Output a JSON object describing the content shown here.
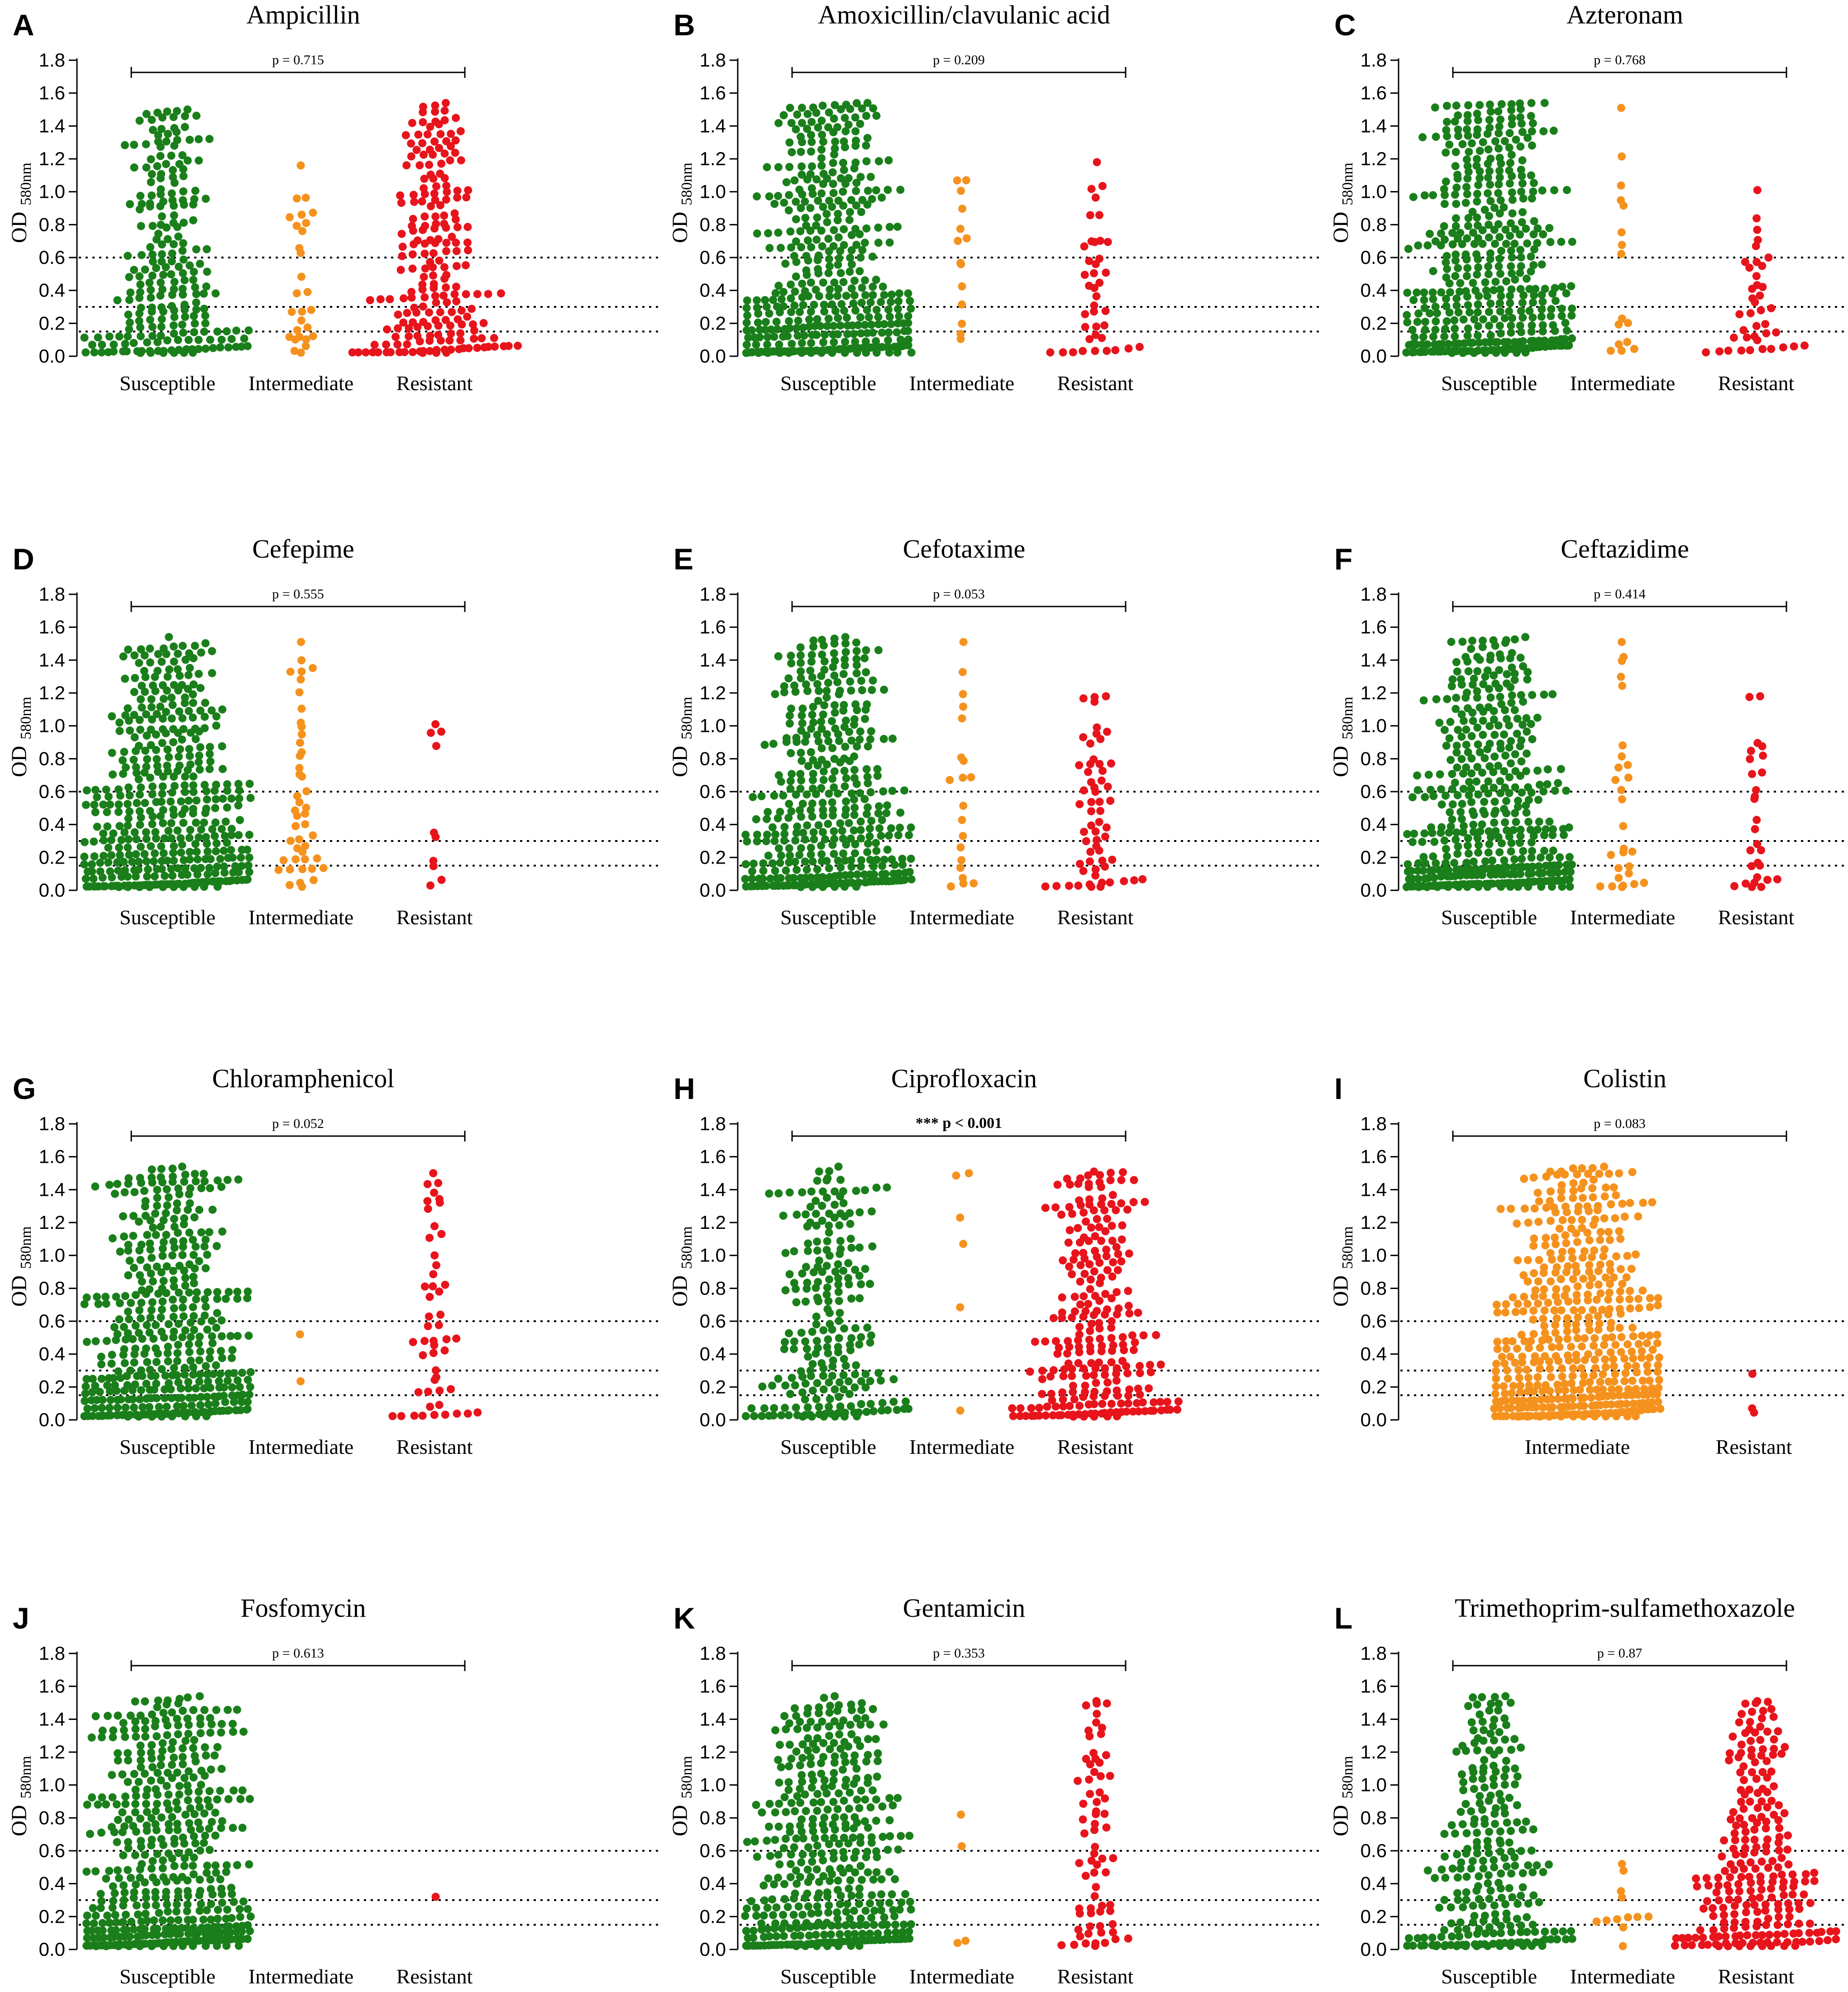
{
  "chart_data": [
    {
      "panel": "A",
      "type": "scatter",
      "title": "Ampicillin",
      "categories": [
        "Susceptible",
        "Intermediate",
        "Resistant"
      ],
      "series": [
        {
          "name": "Susceptible",
          "color": "#1a7f1a",
          "count": 230,
          "max": 1.5
        },
        {
          "name": "Intermediate",
          "color": "#f5921e",
          "count": 28,
          "max": 1.16
        },
        {
          "name": "Resistant",
          "color": "#e8141c",
          "count": 210,
          "max": 1.54
        }
      ],
      "p_text": "p = 0.715",
      "p_bold": false,
      "ylabel": "OD",
      "ylabel_sub": "580nm",
      "ylim": [
        0,
        1.8
      ],
      "yticks": [
        "0.0",
        "0.2",
        "0.4",
        "0.6",
        "0.8",
        "1.0",
        "1.2",
        "1.4",
        "1.6",
        "1.8"
      ],
      "thresholds": [
        0.15,
        0.3,
        0.6
      ]
    },
    {
      "panel": "B",
      "type": "scatter",
      "title": "Amoxicillin/clavulanic acid",
      "categories": [
        "Susceptible",
        "Intermediate",
        "Resistant"
      ],
      "series": [
        {
          "name": "Susceptible",
          "color": "#1a7f1a",
          "count": 420,
          "max": 1.54
        },
        {
          "name": "Intermediate",
          "color": "#f5921e",
          "count": 14,
          "max": 1.07
        },
        {
          "name": "Resistant",
          "color": "#e8141c",
          "count": 40,
          "max": 1.18
        }
      ],
      "p_text": "p = 0.209",
      "p_bold": false,
      "ylabel": "OD",
      "ylabel_sub": "580nm",
      "ylim": [
        0,
        1.8
      ],
      "yticks": [
        "0.0",
        "0.2",
        "0.4",
        "0.6",
        "0.8",
        "1.0",
        "1.2",
        "1.4",
        "1.6",
        "1.8"
      ],
      "thresholds": [
        0.15,
        0.3,
        0.6
      ]
    },
    {
      "panel": "C",
      "type": "scatter",
      "title": "Azteronam",
      "categories": [
        "Susceptible",
        "Intermediate",
        "Resistant"
      ],
      "series": [
        {
          "name": "Susceptible",
          "color": "#1a7f1a",
          "count": 430,
          "max": 1.54
        },
        {
          "name": "Intermediate",
          "color": "#f5921e",
          "count": 16,
          "max": 1.51
        },
        {
          "name": "Resistant",
          "color": "#e8141c",
          "count": 40,
          "max": 1.01
        }
      ],
      "p_text": "p = 0.768",
      "p_bold": false,
      "ylabel": "OD",
      "ylabel_sub": "580nm",
      "ylim": [
        0,
        1.8
      ],
      "yticks": [
        "0.0",
        "0.2",
        "0.4",
        "0.6",
        "0.8",
        "1.0",
        "1.2",
        "1.4",
        "1.6",
        "1.8"
      ],
      "thresholds": [
        0.15,
        0.3,
        0.6
      ]
    },
    {
      "panel": "D",
      "type": "scatter",
      "title": "Cefepime",
      "categories": [
        "Susceptible",
        "Intermediate",
        "Resistant"
      ],
      "series": [
        {
          "name": "Susceptible",
          "color": "#1a7f1a",
          "count": 430,
          "max": 1.54
        },
        {
          "name": "Intermediate",
          "color": "#f5921e",
          "count": 45,
          "max": 1.51
        },
        {
          "name": "Resistant",
          "color": "#e8141c",
          "count": 10,
          "max": 1.01
        }
      ],
      "p_text": "p = 0.555",
      "p_bold": false,
      "ylabel": "OD",
      "ylabel_sub": "580nm",
      "ylim": [
        0,
        1.8
      ],
      "yticks": [
        "0.0",
        "0.2",
        "0.4",
        "0.6",
        "0.8",
        "1.0",
        "1.2",
        "1.4",
        "1.6",
        "1.8"
      ],
      "thresholds": [
        0.15,
        0.3,
        0.6
      ]
    },
    {
      "panel": "E",
      "type": "scatter",
      "title": "Cefotaxime",
      "categories": [
        "Susceptible",
        "Intermediate",
        "Resistant"
      ],
      "series": [
        {
          "name": "Susceptible",
          "color": "#1a7f1a",
          "count": 400,
          "max": 1.54
        },
        {
          "name": "Intermediate",
          "color": "#f5921e",
          "count": 20,
          "max": 1.51
        },
        {
          "name": "Resistant",
          "color": "#e8141c",
          "count": 60,
          "max": 1.18
        }
      ],
      "p_text": "p = 0.053",
      "p_bold": false,
      "ylabel": "OD",
      "ylabel_sub": "580nm",
      "ylim": [
        0,
        1.8
      ],
      "yticks": [
        "0.0",
        "0.2",
        "0.4",
        "0.6",
        "0.8",
        "1.0",
        "1.2",
        "1.4",
        "1.6",
        "1.8"
      ],
      "thresholds": [
        0.15,
        0.3,
        0.6
      ]
    },
    {
      "panel": "F",
      "type": "scatter",
      "title": "Ceftazidime",
      "categories": [
        "Susceptible",
        "Intermediate",
        "Resistant"
      ],
      "series": [
        {
          "name": "Susceptible",
          "color": "#1a7f1a",
          "count": 430,
          "max": 1.54
        },
        {
          "name": "Intermediate",
          "color": "#f5921e",
          "count": 28,
          "max": 1.51
        },
        {
          "name": "Resistant",
          "color": "#e8141c",
          "count": 28,
          "max": 1.18
        }
      ],
      "p_text": "p = 0.414",
      "p_bold": false,
      "ylabel": "OD",
      "ylabel_sub": "580nm",
      "ylim": [
        0,
        1.8
      ],
      "yticks": [
        "0.0",
        "0.2",
        "0.4",
        "0.6",
        "0.8",
        "1.0",
        "1.2",
        "1.4",
        "1.6",
        "1.8"
      ],
      "thresholds": [
        0.15,
        0.3,
        0.6
      ]
    },
    {
      "panel": "G",
      "type": "scatter",
      "title": "Chloramphenicol",
      "categories": [
        "Susceptible",
        "Intermediate",
        "Resistant"
      ],
      "series": [
        {
          "name": "Susceptible",
          "color": "#1a7f1a",
          "count": 430,
          "max": 1.54
        },
        {
          "name": "Intermediate",
          "color": "#f5921e",
          "count": 2,
          "max": 0.52
        },
        {
          "name": "Resistant",
          "color": "#e8141c",
          "count": 50,
          "max": 1.5
        }
      ],
      "p_text": "p = 0.052",
      "p_bold": false,
      "ylabel": "OD",
      "ylabel_sub": "580nm",
      "ylim": [
        0,
        1.8
      ],
      "yticks": [
        "0.0",
        "0.2",
        "0.4",
        "0.6",
        "0.8",
        "1.0",
        "1.2",
        "1.4",
        "1.6",
        "1.8"
      ],
      "thresholds": [
        0.15,
        0.3,
        0.6
      ]
    },
    {
      "panel": "H",
      "type": "scatter",
      "title": "Ciprofloxacin",
      "categories": [
        "Susceptible",
        "Intermediate",
        "Resistant"
      ],
      "series": [
        {
          "name": "Susceptible",
          "color": "#1a7f1a",
          "count": 230,
          "max": 1.54
        },
        {
          "name": "Intermediate",
          "color": "#f5921e",
          "count": 6,
          "max": 1.5
        },
        {
          "name": "Resistant",
          "color": "#e8141c",
          "count": 260,
          "max": 1.51
        }
      ],
      "p_text": "*** p < 0.001",
      "p_bold": true,
      "ylabel": "OD",
      "ylabel_sub": "580nm",
      "ylim": [
        0,
        1.8
      ],
      "yticks": [
        "0.0",
        "0.2",
        "0.4",
        "0.6",
        "0.8",
        "1.0",
        "1.2",
        "1.4",
        "1.6",
        "1.8"
      ],
      "thresholds": [
        0.15,
        0.3,
        0.6
      ]
    },
    {
      "panel": "I",
      "type": "scatter",
      "title": "Colistin",
      "categories": [
        "Intermediate",
        "Resistant"
      ],
      "series": [
        {
          "name": "Intermediate",
          "color": "#f5921e",
          "count": 480,
          "max": 1.54
        },
        {
          "name": "Resistant",
          "color": "#e8141c",
          "count": 3,
          "max": 0.28
        }
      ],
      "p_text": "p = 0.083",
      "p_bold": false,
      "ylabel": "OD",
      "ylabel_sub": "580nm",
      "ylim": [
        0,
        1.8
      ],
      "yticks": [
        "0.0",
        "0.2",
        "0.4",
        "0.6",
        "0.8",
        "1.0",
        "1.2",
        "1.4",
        "1.6",
        "1.8"
      ],
      "thresholds": [
        0.15,
        0.3,
        0.6
      ]
    },
    {
      "panel": "J",
      "type": "scatter",
      "title": "Fosfomycin",
      "categories": [
        "Susceptible",
        "Intermediate",
        "Resistant"
      ],
      "series": [
        {
          "name": "Susceptible",
          "color": "#1a7f1a",
          "count": 480,
          "max": 1.54
        },
        {
          "name": "Intermediate",
          "color": "#f5921e",
          "count": 0,
          "max": 0
        },
        {
          "name": "Resistant",
          "color": "#e8141c",
          "count": 1,
          "max": 0.32
        }
      ],
      "p_text": "p = 0.613",
      "p_bold": false,
      "ylabel": "OD",
      "ylabel_sub": "580nm",
      "ylim": [
        0,
        1.8
      ],
      "yticks": [
        "0.0",
        "0.2",
        "0.4",
        "0.6",
        "0.8",
        "1.0",
        "1.2",
        "1.4",
        "1.6",
        "1.8"
      ],
      "thresholds": [
        0.15,
        0.3,
        0.6
      ]
    },
    {
      "panel": "K",
      "type": "scatter",
      "title": "Gentamicin",
      "categories": [
        "Susceptible",
        "Intermediate",
        "Resistant"
      ],
      "series": [
        {
          "name": "Susceptible",
          "color": "#1a7f1a",
          "count": 420,
          "max": 1.54
        },
        {
          "name": "Intermediate",
          "color": "#f5921e",
          "count": 4,
          "max": 0.82
        },
        {
          "name": "Resistant",
          "color": "#e8141c",
          "count": 70,
          "max": 1.51
        }
      ],
      "p_text": "p = 0.353",
      "p_bold": false,
      "ylabel": "OD",
      "ylabel_sub": "580nm",
      "ylim": [
        0,
        1.8
      ],
      "yticks": [
        "0.0",
        "0.2",
        "0.4",
        "0.6",
        "0.8",
        "1.0",
        "1.2",
        "1.4",
        "1.6",
        "1.8"
      ],
      "thresholds": [
        0.15,
        0.3,
        0.6
      ]
    },
    {
      "panel": "L",
      "type": "scatter",
      "title": "Trimethoprim-sulfamethoxazole",
      "categories": [
        "Susceptible",
        "Intermediate",
        "Resistant"
      ],
      "series": [
        {
          "name": "Susceptible",
          "color": "#1a7f1a",
          "count": 250,
          "max": 1.54
        },
        {
          "name": "Intermediate",
          "color": "#f5921e",
          "count": 12,
          "max": 0.52
        },
        {
          "name": "Resistant",
          "color": "#e8141c",
          "count": 240,
          "max": 1.51
        }
      ],
      "p_text": "p = 0.87",
      "p_bold": false,
      "ylabel": "OD",
      "ylabel_sub": "580nm",
      "ylim": [
        0,
        1.8
      ],
      "yticks": [
        "0.0",
        "0.2",
        "0.4",
        "0.6",
        "0.8",
        "1.0",
        "1.2",
        "1.4",
        "1.6",
        "1.8"
      ],
      "thresholds": [
        0.15,
        0.3,
        0.6
      ]
    }
  ]
}
